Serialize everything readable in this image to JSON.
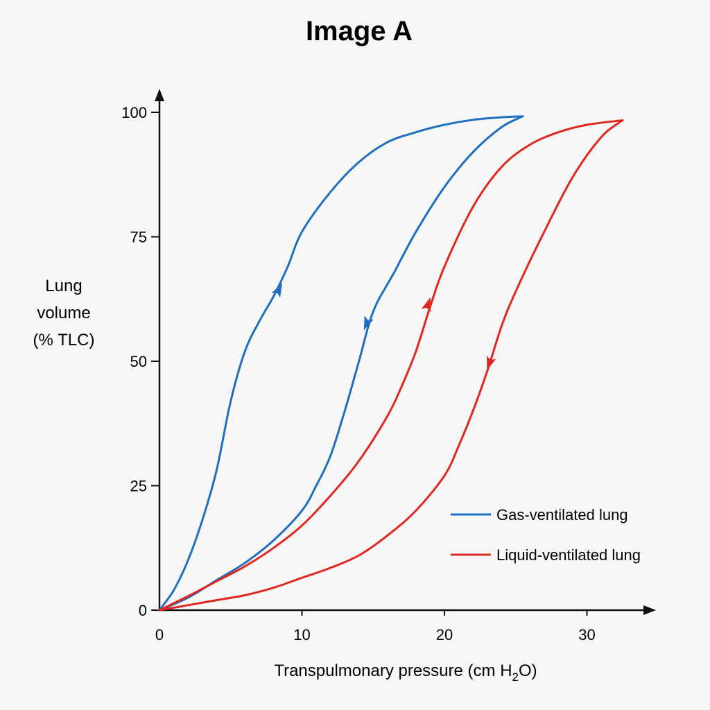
{
  "chart_data": {
    "type": "line",
    "title": "Image A",
    "xlabel": {
      "pre": "Transpulmonary pressure (cm H",
      "sub": "2",
      "post": "O)"
    },
    "ylabel": [
      "Lung",
      "volume",
      "(% TLC)"
    ],
    "xlim": [
      0,
      34
    ],
    "ylim": [
      0,
      100
    ],
    "xticks": [
      0,
      10,
      20,
      30
    ],
    "yticks": [
      0,
      25,
      50,
      75,
      100
    ],
    "grid": false,
    "legend_position": "bottom-right",
    "series": [
      {
        "name": "Gas-ventilated lung",
        "color": "#1f6ebf",
        "inflation": [
          [
            0,
            0
          ],
          [
            1,
            4
          ],
          [
            2,
            10
          ],
          [
            3,
            18
          ],
          [
            4,
            28
          ],
          [
            5,
            42
          ],
          [
            6,
            52
          ],
          [
            7,
            58
          ],
          [
            8,
            63
          ],
          [
            9,
            69
          ],
          [
            10,
            76
          ],
          [
            12,
            84
          ],
          [
            14,
            90
          ],
          [
            16,
            94
          ],
          [
            18,
            96
          ],
          [
            20,
            97.5
          ],
          [
            22,
            98.5
          ],
          [
            24,
            99
          ],
          [
            25.5,
            99.2
          ]
        ],
        "deflation": [
          [
            25.5,
            99.2
          ],
          [
            24,
            97
          ],
          [
            22,
            92
          ],
          [
            20,
            85
          ],
          [
            18,
            76
          ],
          [
            16.5,
            68
          ],
          [
            15,
            60
          ],
          [
            14,
            50
          ],
          [
            13,
            40
          ],
          [
            12,
            31
          ],
          [
            11,
            25
          ],
          [
            10,
            20
          ],
          [
            8,
            14
          ],
          [
            6,
            9.5
          ],
          [
            4,
            6
          ],
          [
            2,
            2.5
          ],
          [
            0,
            0
          ]
        ],
        "arrows": [
          {
            "x": 8.3,
            "y": 64,
            "direction": "up"
          },
          {
            "x": 14.6,
            "y": 58,
            "direction": "down"
          }
        ]
      },
      {
        "name": "Liquid-ventilated lung",
        "color": "#e0261f",
        "inflation": [
          [
            0,
            0
          ],
          [
            2,
            2.8
          ],
          [
            4,
            5.8
          ],
          [
            6,
            8.8
          ],
          [
            8,
            12.5
          ],
          [
            10,
            17
          ],
          [
            12,
            23
          ],
          [
            14,
            30
          ],
          [
            16,
            39
          ],
          [
            17,
            45
          ],
          [
            18,
            52
          ],
          [
            19,
            61
          ],
          [
            20,
            69
          ],
          [
            22,
            81
          ],
          [
            24,
            89
          ],
          [
            26,
            93.5
          ],
          [
            28,
            96
          ],
          [
            30,
            97.5
          ],
          [
            32.5,
            98.4
          ]
        ],
        "deflation": [
          [
            32.5,
            98.4
          ],
          [
            31,
            95
          ],
          [
            29,
            87
          ],
          [
            27,
            76
          ],
          [
            25,
            64
          ],
          [
            24,
            57
          ],
          [
            23,
            48
          ],
          [
            22,
            40
          ],
          [
            21,
            33
          ],
          [
            20,
            27
          ],
          [
            18,
            20
          ],
          [
            16,
            15
          ],
          [
            14,
            11
          ],
          [
            12,
            8.5
          ],
          [
            10,
            6.5
          ],
          [
            8,
            4.5
          ],
          [
            6,
            3
          ],
          [
            4,
            2
          ],
          [
            2,
            1
          ],
          [
            0,
            0
          ]
        ],
        "arrows": [
          {
            "x": 18.8,
            "y": 61,
            "direction": "up"
          },
          {
            "x": 23.2,
            "y": 50,
            "direction": "down"
          }
        ]
      }
    ]
  }
}
